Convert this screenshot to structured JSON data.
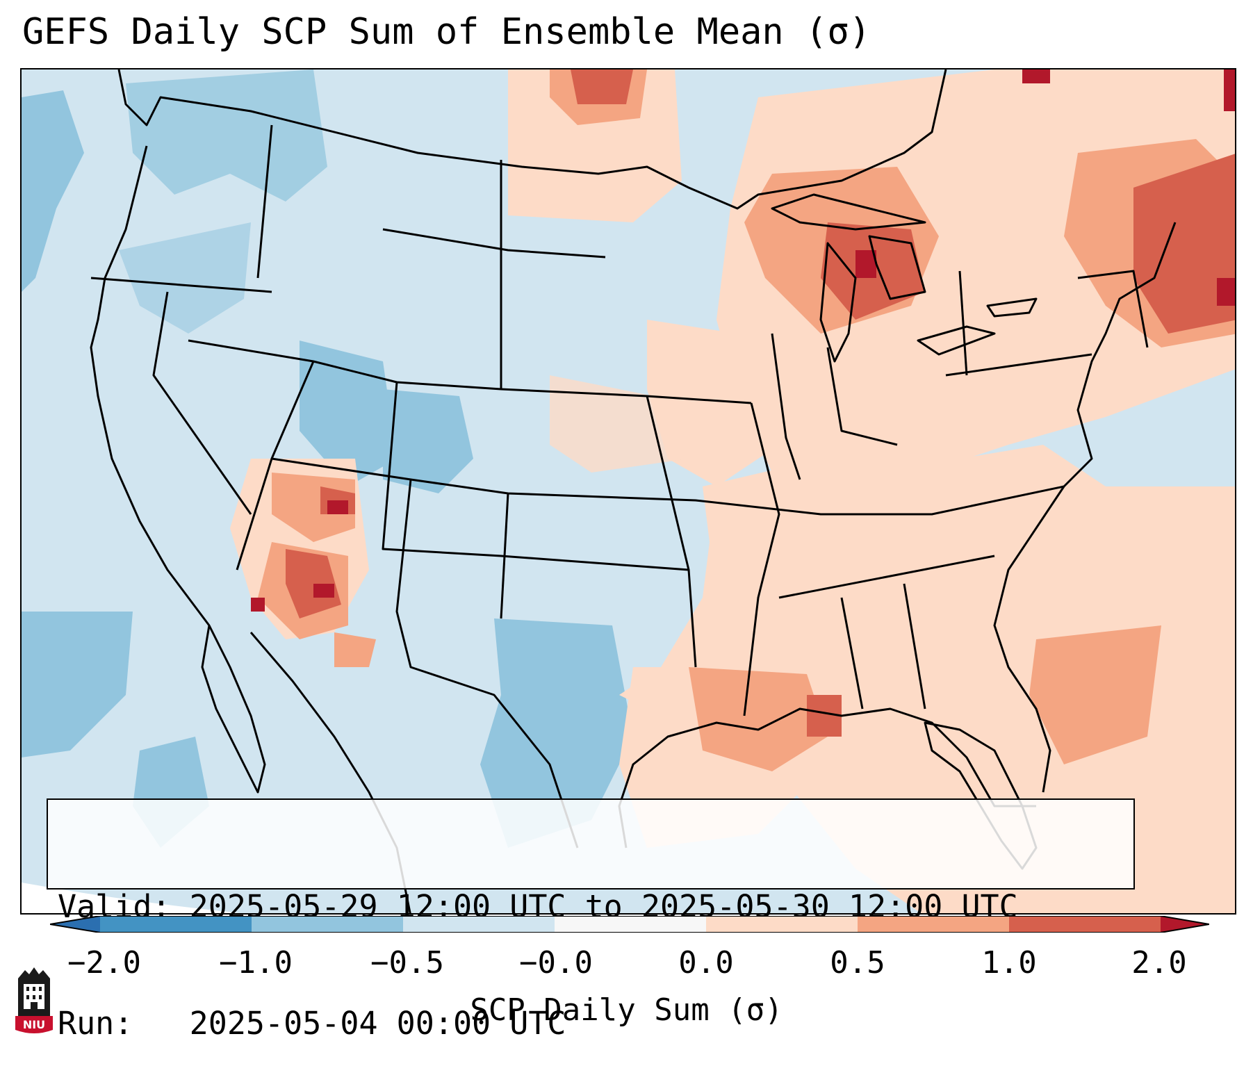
{
  "title": "GEFS Daily SCP Sum of Ensemble Mean (σ)",
  "info": {
    "valid_label": "Valid:",
    "valid_value": "2025-05-29 12:00 UTC to 2025-05-30 12:00 UTC",
    "run_label": "Run:",
    "run_value": "2025-05-04 00:00 UTC"
  },
  "colorbar": {
    "label": "SCP Daily Sum (σ)",
    "ticks": [
      "−2.0",
      "−1.0",
      "−0.5",
      "−0.0",
      "0.0",
      "0.5",
      "1.0",
      "2.0"
    ],
    "bins": [
      {
        "range": "< -2.0",
        "color": "#2b6fb0"
      },
      {
        "range": "-2.0 to -1.0",
        "color": "#4393c3"
      },
      {
        "range": "-1.0 to -0.5",
        "color": "#92c5de"
      },
      {
        "range": "-0.5 to 0.0",
        "color": "#d1e5f0"
      },
      {
        "range": "0.0",
        "color": "#f7f7f7"
      },
      {
        "range": "0.0 to 0.5",
        "color": "#fddbc7"
      },
      {
        "range": "0.5 to 1.0",
        "color": "#f4a582"
      },
      {
        "range": "1.0 to 2.0",
        "color": "#d6604d"
      },
      {
        "range": "> 2.0",
        "color": "#b2182b"
      }
    ]
  },
  "logo": {
    "text": "NIU",
    "icon": "niu-logo-icon"
  },
  "map": {
    "region": "Contiguous United States",
    "projection": "Lambert Conformal"
  }
}
